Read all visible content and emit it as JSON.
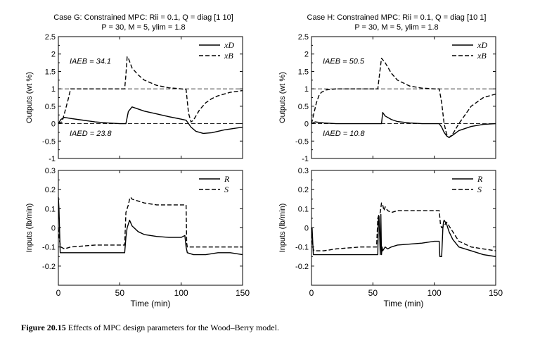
{
  "figure": {
    "caption_label": "Figure 20.15",
    "caption_text": "Effects of MPC design parameters for the Wood–Berry model."
  },
  "chart_data": [
    {
      "type": "line",
      "title": "Case G: Constrained MPC: Rii = 0.1, Q = diag [1 10]",
      "subtitle": "P = 30, M = 5, ylim = 1.8",
      "xlabel": "",
      "ylabel": "Outputs (wt %)",
      "xlim": [
        0,
        150
      ],
      "ylim": [
        -1,
        2.5
      ],
      "yticks": [
        "2.5",
        "2",
        "1.5",
        "1",
        "0.5",
        "0",
        "-0.5",
        "-1"
      ],
      "reference_lines": [
        1,
        0
      ],
      "annotations": [
        "IAEB = 34.1",
        "IAED = 23.8"
      ],
      "legend": "top-right",
      "series": [
        {
          "name": "xD",
          "style": "solid",
          "x": [
            0,
            2,
            5,
            10,
            20,
            30,
            40,
            50,
            55,
            57,
            60,
            65,
            70,
            80,
            90,
            100,
            104,
            108,
            112,
            118,
            125,
            135,
            150
          ],
          "y": [
            0,
            0.12,
            0.18,
            0.15,
            0.1,
            0.05,
            0.02,
            0.0,
            0.0,
            0.35,
            0.48,
            0.42,
            0.36,
            0.28,
            0.2,
            0.13,
            0.1,
            -0.1,
            -0.22,
            -0.28,
            -0.26,
            -0.18,
            -0.1
          ]
        },
        {
          "name": "xB",
          "style": "dashed",
          "x": [
            0,
            3,
            5,
            8,
            10,
            20,
            40,
            54,
            55,
            56,
            57,
            60,
            65,
            70,
            80,
            90,
            100,
            104,
            106,
            108,
            110,
            115,
            120,
            125,
            130,
            140,
            150
          ],
          "y": [
            0,
            0.05,
            0.3,
            0.7,
            1.0,
            1.0,
            1.0,
            1.0,
            1.4,
            1.92,
            1.88,
            1.6,
            1.4,
            1.25,
            1.1,
            1.03,
            1.0,
            0.98,
            0.3,
            0.05,
            0.1,
            0.4,
            0.6,
            0.72,
            0.8,
            0.9,
            0.95
          ]
        }
      ]
    },
    {
      "type": "line",
      "title": "Case H: Constrained MPC: Rii = 0.1, Q = diag [10 1]",
      "subtitle": "P = 30, M = 5, ylim = 1.8",
      "xlabel": "",
      "ylabel": "Outputs (wt %)",
      "xlim": [
        0,
        150
      ],
      "ylim": [
        -1,
        2.5
      ],
      "yticks": [
        "2.5",
        "2",
        "1.5",
        "1",
        "0.5",
        "0",
        "-0.5",
        "-1"
      ],
      "reference_lines": [
        1,
        0
      ],
      "annotations": [
        "IAEB = 50.5",
        "IAED = 10.8"
      ],
      "legend": "top-right",
      "series": [
        {
          "name": "xD",
          "style": "solid",
          "x": [
            0,
            3,
            10,
            20,
            40,
            55,
            57,
            58,
            60,
            65,
            70,
            80,
            90,
            100,
            104,
            106,
            108,
            110,
            112,
            115,
            120,
            130,
            140,
            150
          ],
          "y": [
            0,
            0.05,
            0.02,
            0.0,
            0.0,
            0.0,
            0.0,
            0.32,
            0.22,
            0.12,
            0.06,
            0.02,
            0.0,
            0.0,
            0.0,
            -0.1,
            -0.25,
            -0.35,
            -0.4,
            -0.33,
            -0.2,
            -0.08,
            -0.02,
            0.0
          ]
        },
        {
          "name": "xB",
          "style": "dashed",
          "x": [
            0,
            2,
            4,
            6,
            8,
            12,
            20,
            40,
            54,
            55,
            57,
            60,
            65,
            70,
            80,
            90,
            100,
            104,
            106,
            108,
            110,
            112,
            115,
            120,
            130,
            140,
            150
          ],
          "y": [
            0,
            0.3,
            0.6,
            0.8,
            0.9,
            0.97,
            1.0,
            1.0,
            1.0,
            1.3,
            1.88,
            1.75,
            1.45,
            1.25,
            1.08,
            1.02,
            1.0,
            1.0,
            0.6,
            0.0,
            -0.3,
            -0.4,
            -0.3,
            0.0,
            0.5,
            0.75,
            0.85
          ]
        }
      ]
    },
    {
      "type": "line",
      "title": "",
      "xlabel": "Time (min)",
      "ylabel": "Inputs (lb/min)",
      "xlim": [
        0,
        150
      ],
      "ylim": [
        -0.3,
        0.3
      ],
      "yticks": [
        "0.3",
        "0.2",
        "0.1",
        "0",
        "-0.1",
        "-0.2"
      ],
      "xticks": [
        "0",
        "50",
        "100",
        "150"
      ],
      "legend": "top-right",
      "series": [
        {
          "name": "R",
          "style": "solid",
          "x": [
            0,
            0.5,
            1.5,
            2,
            10,
            30,
            54,
            55,
            56,
            57,
            58,
            60,
            65,
            70,
            80,
            90,
            100,
            103,
            104,
            105,
            110,
            120,
            130,
            140,
            150
          ],
          "y": [
            0.16,
            0.1,
            -0.13,
            -0.13,
            -0.13,
            -0.13,
            -0.13,
            -0.05,
            0.0,
            0.02,
            0.04,
            0.01,
            -0.02,
            -0.035,
            -0.045,
            -0.05,
            -0.05,
            -0.04,
            -0.1,
            -0.13,
            -0.14,
            -0.14,
            -0.13,
            -0.13,
            -0.14
          ]
        },
        {
          "name": "S",
          "style": "dashed",
          "x": [
            0,
            1,
            2,
            5,
            10,
            30,
            50,
            54,
            55,
            56,
            57,
            58,
            59,
            60,
            70,
            80,
            90,
            100,
            103,
            104,
            104.5,
            105,
            110,
            120,
            130,
            140,
            150
          ],
          "y": [
            0.0,
            -0.07,
            -0.1,
            -0.11,
            -0.1,
            -0.09,
            -0.09,
            -0.09,
            0.08,
            0.1,
            0.12,
            0.15,
            0.16,
            0.15,
            0.13,
            0.12,
            0.12,
            0.12,
            0.12,
            0.12,
            -0.08,
            -0.1,
            -0.1,
            -0.1,
            -0.1,
            -0.1,
            -0.1
          ]
        }
      ]
    },
    {
      "type": "line",
      "title": "",
      "xlabel": "Time (min)",
      "ylabel": "Inputs (lb/min)",
      "xlim": [
        0,
        150
      ],
      "ylim": [
        -0.3,
        0.3
      ],
      "yticks": [
        "0.3",
        "0.2",
        "0.1",
        "0",
        "-0.1",
        "-0.2"
      ],
      "xticks": [
        "0",
        "50",
        "100",
        "150"
      ],
      "legend": "top-right",
      "series": [
        {
          "name": "R",
          "style": "solid",
          "x": [
            0,
            0.5,
            1.5,
            2,
            20,
            40,
            54,
            54.5,
            55,
            56,
            56.5,
            57,
            57.5,
            58,
            60,
            62,
            65,
            70,
            80,
            90,
            100,
            104,
            104.5,
            105,
            106,
            107,
            107.5,
            108,
            110,
            112,
            115,
            120,
            130,
            140,
            150
          ],
          "y": [
            0.0,
            0.0,
            -0.14,
            -0.14,
            -0.14,
            -0.14,
            -0.14,
            0.05,
            0.06,
            -0.14,
            0.07,
            -0.14,
            -0.1,
            -0.12,
            -0.1,
            -0.11,
            -0.1,
            -0.09,
            -0.085,
            -0.08,
            -0.07,
            -0.07,
            -0.15,
            -0.15,
            -0.15,
            0.0,
            0.03,
            0.04,
            0.02,
            -0.02,
            -0.06,
            -0.1,
            -0.12,
            -0.14,
            -0.15
          ]
        },
        {
          "name": "S",
          "style": "dashed",
          "x": [
            0,
            1,
            2,
            10,
            20,
            40,
            50,
            53,
            54,
            55,
            56,
            57,
            58,
            59,
            60,
            62,
            65,
            70,
            80,
            90,
            100,
            104,
            105,
            106,
            108,
            110,
            115,
            120,
            130,
            140,
            150
          ],
          "y": [
            0.0,
            -0.1,
            -0.12,
            -0.12,
            -0.11,
            -0.1,
            -0.1,
            -0.1,
            0.05,
            0.07,
            0.08,
            0.13,
            0.12,
            0.09,
            0.11,
            0.09,
            0.08,
            0.09,
            0.09,
            0.09,
            0.09,
            0.09,
            0.02,
            0.0,
            0.01,
            0.03,
            -0.02,
            -0.07,
            -0.1,
            -0.11,
            -0.12
          ]
        }
      ]
    }
  ]
}
